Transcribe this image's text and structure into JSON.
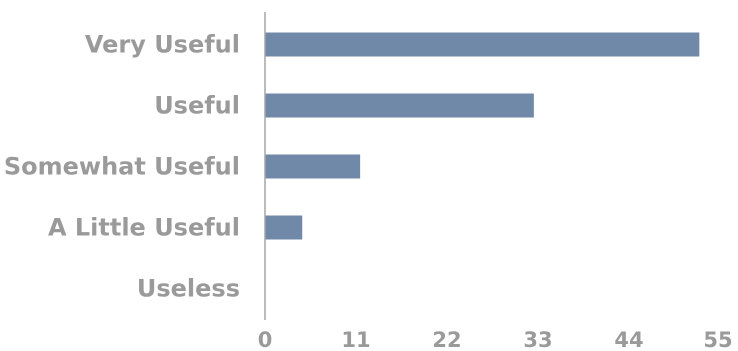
{
  "chart_data": {
    "type": "bar",
    "orientation": "horizontal",
    "categories": [
      "Very Useful",
      "Useful",
      "Somewhat Useful",
      "A Little Useful",
      "Useless"
    ],
    "values": [
      52.5,
      32.5,
      11.5,
      4.5,
      0
    ],
    "xlim": [
      0,
      55
    ],
    "xticks": [
      0,
      11,
      22,
      33,
      44,
      55
    ],
    "title": "",
    "xlabel": "",
    "ylabel": "",
    "grid": false,
    "colors": {
      "bar": "#7189a8",
      "axis": "#a6a6a6",
      "text": "#9a9a9a"
    }
  }
}
